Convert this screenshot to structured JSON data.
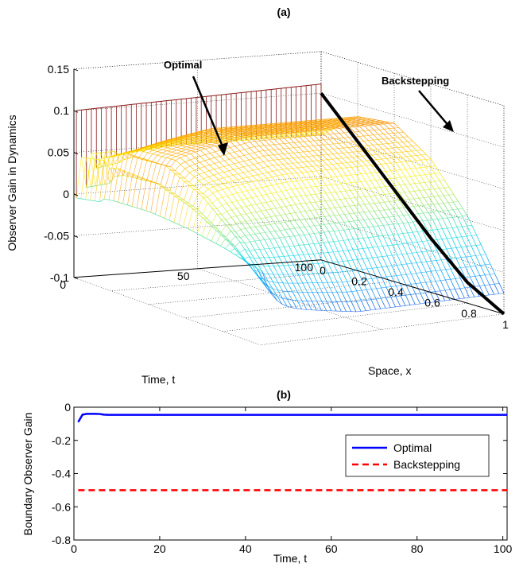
{
  "chart_data": [
    {
      "type": "surface",
      "title": "(a)",
      "xlabel": "Space, x",
      "ylabel": "Time, t",
      "zlabel": "Observer Gain in Dynamics",
      "xlim": [
        0,
        1
      ],
      "ylim": [
        0,
        100
      ],
      "zlim": [
        -0.1,
        0.15
      ],
      "x_ticks": [
        "0",
        "0.2",
        "0.4",
        "0.6",
        "0.8",
        "1"
      ],
      "y_ticks": [
        "0",
        "50",
        "100"
      ],
      "z_ticks": [
        "0.15",
        "0.1",
        "0.05",
        "0",
        "-0.05",
        "-0.1"
      ],
      "grid": true,
      "series": [
        {
          "name": "Optimal",
          "surface_profile_x": [
            0,
            0.2,
            0.4,
            0.6,
            0.8,
            1.0
          ],
          "surface_profile_z": [
            0.05,
            0.085,
            0.09,
            0.06,
            0.005,
            -0.075
          ]
        },
        {
          "name": "Backstepping",
          "x": [
            0,
            0.2,
            0.4,
            0.6,
            0.8,
            1.0
          ],
          "z": [
            0.1,
            0.055,
            0.01,
            -0.035,
            -0.075,
            -0.1
          ]
        }
      ],
      "annotations": [
        "Optimal",
        "Backstepping"
      ]
    },
    {
      "type": "line",
      "title": "(b)",
      "xlabel": "Time, t",
      "ylabel": "Boundary Observer Gain",
      "xlim": [
        0,
        101
      ],
      "ylim": [
        -0.8,
        0
      ],
      "x_ticks": [
        "0",
        "20",
        "40",
        "60",
        "80",
        "100"
      ],
      "y_ticks": [
        "0",
        "-0.2",
        "-0.4",
        "-0.6",
        "-0.8"
      ],
      "legend": "right",
      "series": [
        {
          "name": "Optimal",
          "color": "#0000ff",
          "x": [
            1,
            2,
            3,
            4,
            5,
            6,
            7,
            8,
            10,
            20,
            40,
            60,
            80,
            101
          ],
          "y": [
            -0.09,
            -0.045,
            -0.04,
            -0.04,
            -0.04,
            -0.041,
            -0.045,
            -0.046,
            -0.046,
            -0.046,
            -0.046,
            -0.046,
            -0.046,
            -0.046
          ]
        },
        {
          "name": "Backstepping",
          "color": "#ff0000",
          "x": [
            1,
            101
          ],
          "y": [
            -0.5,
            -0.5
          ]
        }
      ]
    }
  ]
}
